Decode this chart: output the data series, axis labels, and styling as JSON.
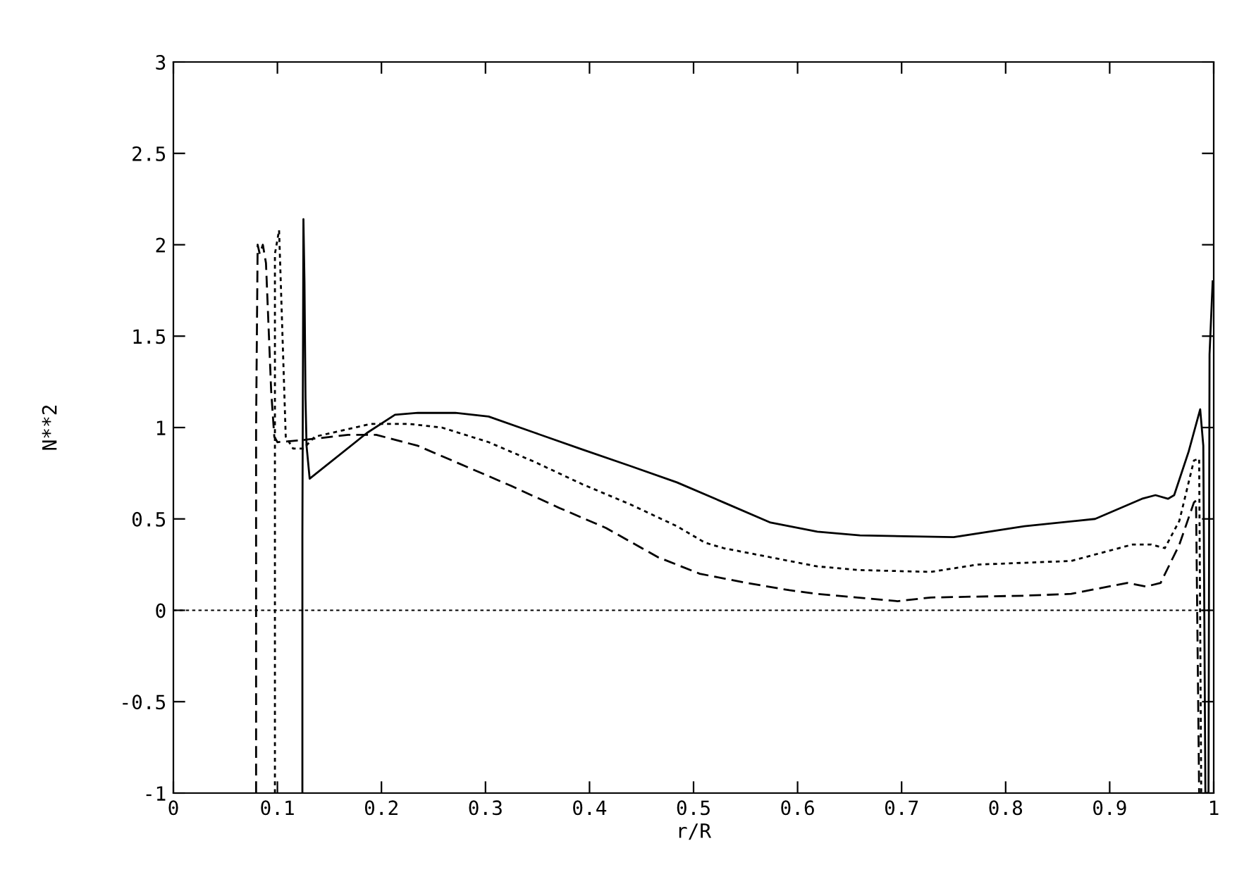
{
  "chart_data": {
    "type": "line",
    "xlabel": "r/R",
    "ylabel": "N**2",
    "xlim": [
      0,
      1
    ],
    "ylim": [
      -1,
      3
    ],
    "xticks": [
      0,
      0.1,
      0.2,
      0.3,
      0.4,
      0.5,
      0.6,
      0.7,
      0.8,
      0.9,
      1
    ],
    "yticks": [
      -1,
      -0.5,
      0,
      0.5,
      1,
      1.5,
      2,
      2.5,
      3
    ],
    "grid": false,
    "legend": false,
    "marker": "none",
    "ref_lines": [
      {
        "axis": "y",
        "value": 0,
        "line_style": "dotted",
        "color": "#000000"
      }
    ],
    "series": [
      {
        "color": "#000000",
        "line_style": "solid",
        "x": [
          0.124,
          0.124,
          0.125,
          0.126,
          0.127,
          0.128,
          0.131,
          0.186,
          0.213,
          0.235,
          0.271,
          0.303,
          0.348,
          0.393,
          0.439,
          0.484,
          0.529,
          0.574,
          0.619,
          0.66,
          0.75,
          0.818,
          0.886,
          0.931,
          0.944,
          0.956,
          0.962,
          0.976,
          0.987,
          0.99,
          0.992,
          0.995,
          0.996,
          0.999
        ],
        "values": [
          -1,
          0.41,
          2.14,
          1.8,
          1.16,
          0.9,
          0.72,
          0.97,
          1.07,
          1.08,
          1.08,
          1.06,
          0.97,
          0.88,
          0.79,
          0.7,
          0.59,
          0.48,
          0.43,
          0.41,
          0.4,
          0.46,
          0.5,
          0.61,
          0.63,
          0.61,
          0.63,
          0.87,
          1.1,
          0.9,
          -1,
          -1,
          1.4,
          1.8
        ]
      },
      {
        "color": "#000000",
        "line_style": "dotted",
        "x": [
          0.0976,
          0.0976,
          0.1016,
          0.108,
          0.115,
          0.125,
          0.136,
          0.19,
          0.226,
          0.258,
          0.303,
          0.348,
          0.393,
          0.439,
          0.484,
          0.511,
          0.529,
          0.574,
          0.619,
          0.66,
          0.728,
          0.773,
          0.863,
          0.922,
          0.94,
          0.953,
          0.967,
          0.981,
          0.986,
          0.988
        ],
        "values": [
          -1,
          1.95,
          2.08,
          0.95,
          0.885,
          0.885,
          0.95,
          1.02,
          1.02,
          1.0,
          0.92,
          0.81,
          0.69,
          0.58,
          0.46,
          0.37,
          0.34,
          0.29,
          0.24,
          0.22,
          0.21,
          0.25,
          0.27,
          0.36,
          0.36,
          0.34,
          0.49,
          0.82,
          0.83,
          -1
        ]
      },
      {
        "color": "#000000",
        "line_style": "dashed",
        "x": [
          0.0795,
          0.0795,
          0.081,
          0.083,
          0.086,
          0.089,
          0.094,
          0.097,
          0.1,
          0.122,
          0.168,
          0.195,
          0.235,
          0.28,
          0.325,
          0.371,
          0.416,
          0.466,
          0.506,
          0.551,
          0.592,
          0.619,
          0.696,
          0.728,
          0.818,
          0.863,
          0.917,
          0.935,
          0.949,
          0.967,
          0.981,
          0.983,
          0.986
        ],
        "values": [
          -1,
          1.0,
          2.0,
          1.95,
          2.0,
          1.9,
          1.2,
          0.95,
          0.92,
          0.93,
          0.96,
          0.96,
          0.9,
          0.79,
          0.68,
          0.56,
          0.45,
          0.29,
          0.2,
          0.15,
          0.11,
          0.09,
          0.05,
          0.07,
          0.08,
          0.09,
          0.15,
          0.13,
          0.15,
          0.36,
          0.59,
          0.6,
          -1
        ]
      }
    ]
  }
}
